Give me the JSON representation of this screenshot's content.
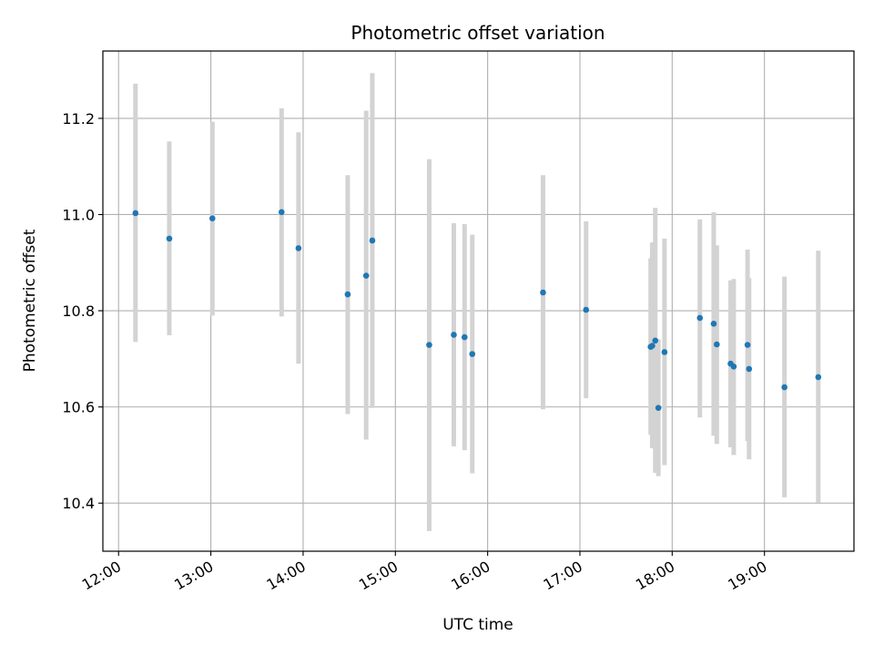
{
  "chart_data": {
    "type": "scatter",
    "title": "Photometric offset variation",
    "xlabel": "UTC time",
    "ylabel": "Photometric offset",
    "x_unit": "UTC hour",
    "xlim": [
      11.83,
      19.97
    ],
    "ylim": [
      10.3,
      11.34
    ],
    "xticks": [
      {
        "value": 12,
        "label": "12:00"
      },
      {
        "value": 13,
        "label": "13:00"
      },
      {
        "value": 14,
        "label": "14:00"
      },
      {
        "value": 15,
        "label": "15:00"
      },
      {
        "value": 16,
        "label": "16:00"
      },
      {
        "value": 17,
        "label": "17:00"
      },
      {
        "value": 18,
        "label": "18:00"
      },
      {
        "value": 19,
        "label": "19:00"
      }
    ],
    "yticks": [
      {
        "value": 10.4,
        "label": "10.4"
      },
      {
        "value": 10.6,
        "label": "10.6"
      },
      {
        "value": 10.8,
        "label": "10.8"
      },
      {
        "value": 11.0,
        "label": "11.0"
      },
      {
        "value": 11.2,
        "label": "11.2"
      }
    ],
    "grid": true,
    "point_color": "#1f77b4",
    "errorbar_color": "#d3d3d3",
    "points": [
      {
        "x": "12:11",
        "y": 11.003,
        "ylo": 10.735,
        "yhi": 11.272
      },
      {
        "x": "12:33",
        "y": 10.95,
        "ylo": 10.749,
        "yhi": 11.152
      },
      {
        "x": "13:01",
        "y": 10.992,
        "ylo": 10.79,
        "yhi": 11.193
      },
      {
        "x": "13:46",
        "y": 11.005,
        "ylo": 10.788,
        "yhi": 11.221
      },
      {
        "x": "13:57",
        "y": 10.93,
        "ylo": 10.69,
        "yhi": 11.171
      },
      {
        "x": "14:29",
        "y": 10.834,
        "ylo": 10.585,
        "yhi": 11.082
      },
      {
        "x": "14:41",
        "y": 10.873,
        "ylo": 10.532,
        "yhi": 11.216
      },
      {
        "x": "14:45",
        "y": 10.946,
        "ylo": 10.598,
        "yhi": 11.294
      },
      {
        "x": "15:22",
        "y": 10.729,
        "ylo": 10.342,
        "yhi": 11.115
      },
      {
        "x": "15:38",
        "y": 10.75,
        "ylo": 10.518,
        "yhi": 10.982
      },
      {
        "x": "15:45",
        "y": 10.745,
        "ylo": 10.51,
        "yhi": 10.98
      },
      {
        "x": "15:50",
        "y": 10.71,
        "ylo": 10.462,
        "yhi": 10.958
      },
      {
        "x": "16:36",
        "y": 10.838,
        "ylo": 10.595,
        "yhi": 11.082
      },
      {
        "x": "17:04",
        "y": 10.802,
        "ylo": 10.618,
        "yhi": 10.986
      },
      {
        "x": "17:46",
        "y": 10.725,
        "ylo": 10.542,
        "yhi": 10.909
      },
      {
        "x": "17:47",
        "y": 10.727,
        "ylo": 10.514,
        "yhi": 10.942
      },
      {
        "x": "17:49",
        "y": 10.738,
        "ylo": 10.463,
        "yhi": 11.014
      },
      {
        "x": "17:51",
        "y": 10.598,
        "ylo": 10.456,
        "yhi": 10.741
      },
      {
        "x": "17:55",
        "y": 10.714,
        "ylo": 10.479,
        "yhi": 10.95
      },
      {
        "x": "18:18",
        "y": 10.785,
        "ylo": 10.578,
        "yhi": 10.99
      },
      {
        "x": "18:27",
        "y": 10.773,
        "ylo": 10.54,
        "yhi": 11.005
      },
      {
        "x": "18:29",
        "y": 10.73,
        "ylo": 10.523,
        "yhi": 10.936
      },
      {
        "x": "18:38",
        "y": 10.69,
        "ylo": 10.516,
        "yhi": 10.863
      },
      {
        "x": "18:40",
        "y": 10.684,
        "ylo": 10.5,
        "yhi": 10.866
      },
      {
        "x": "18:49",
        "y": 10.729,
        "ylo": 10.529,
        "yhi": 10.927
      },
      {
        "x": "18:50",
        "y": 10.679,
        "ylo": 10.491,
        "yhi": 10.868
      },
      {
        "x": "19:13",
        "y": 10.641,
        "ylo": 10.412,
        "yhi": 10.871
      },
      {
        "x": "19:35",
        "y": 10.662,
        "ylo": 10.401,
        "yhi": 10.925
      }
    ]
  }
}
